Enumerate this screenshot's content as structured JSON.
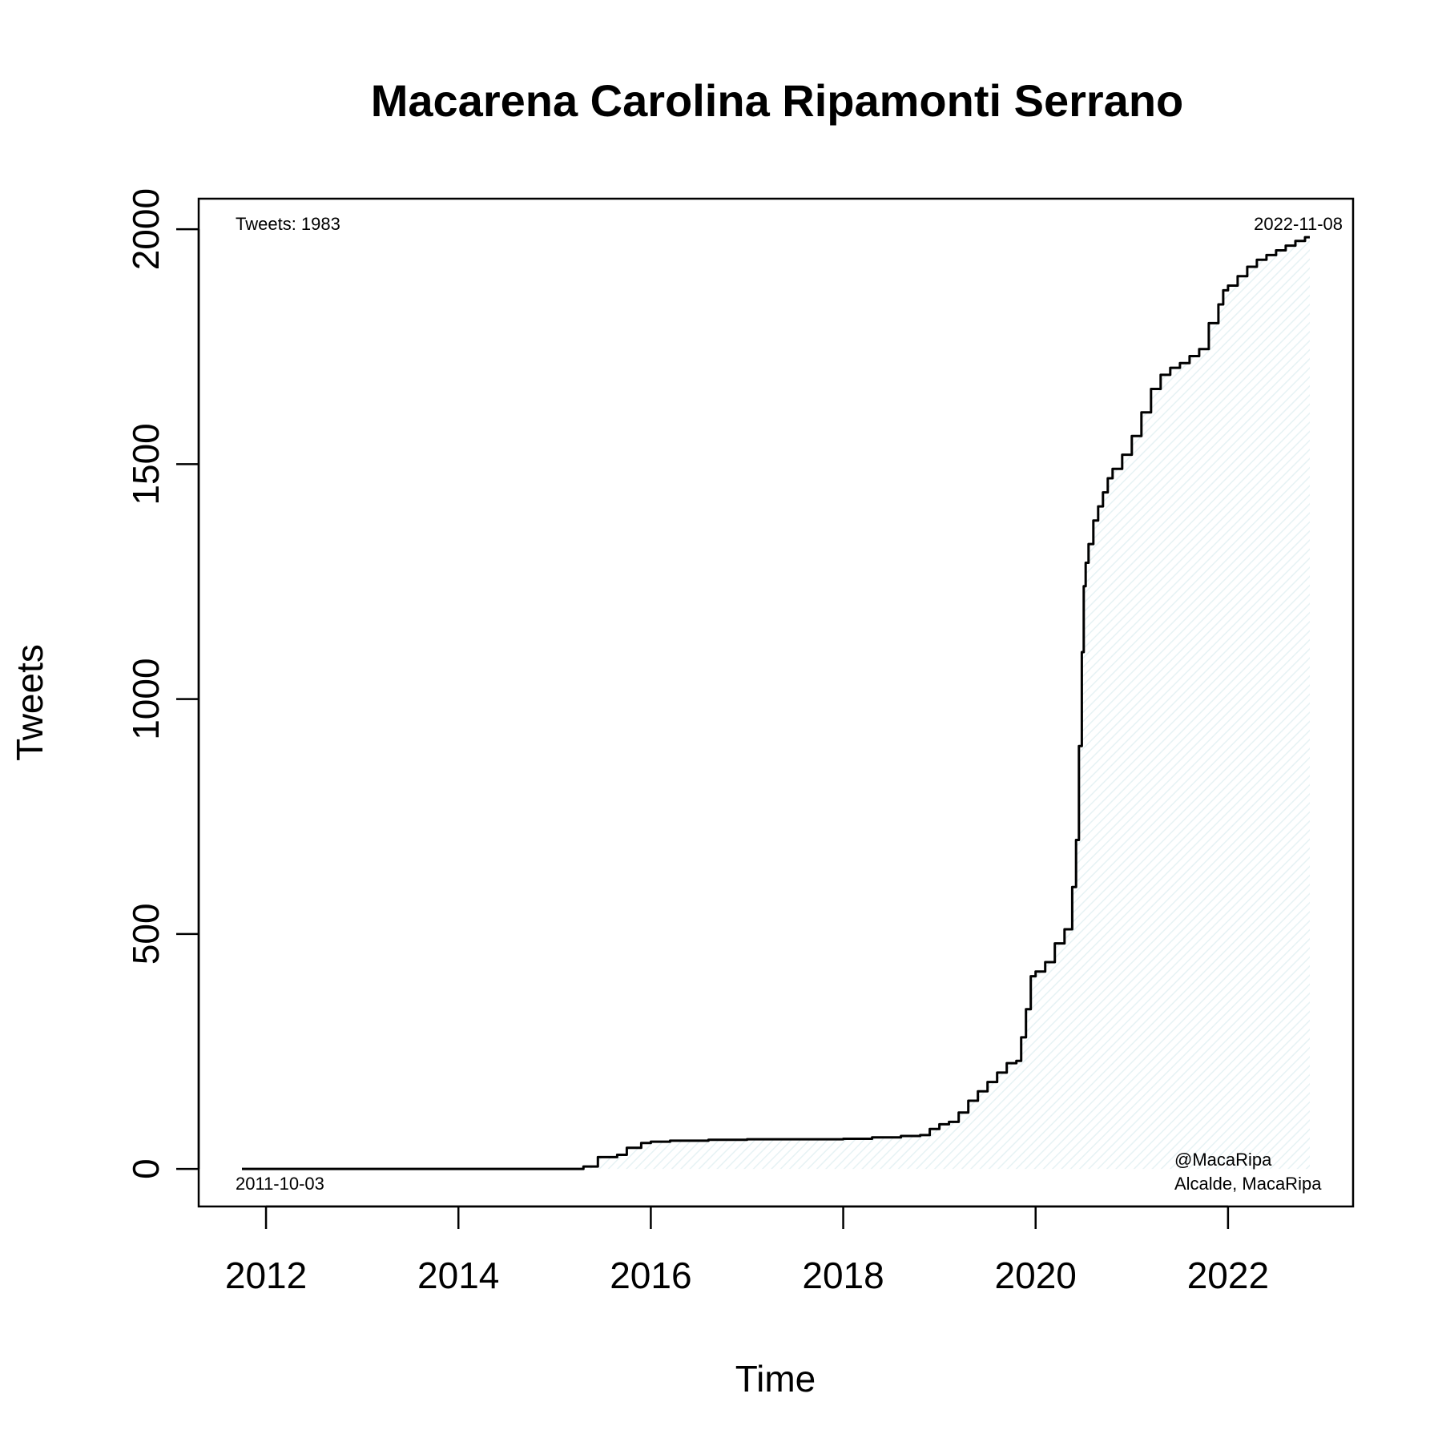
{
  "chart_data": {
    "type": "area",
    "title": "Macarena Carolina Ripamonti Serrano",
    "xlabel": "Time",
    "ylabel": "Tweets",
    "xlim": [
      2011.3,
      2023.3
    ],
    "ylim": [
      -80,
      2065
    ],
    "x_ticks": [
      2012,
      2014,
      2016,
      2018,
      2020,
      2022
    ],
    "y_ticks": [
      0,
      500,
      1000,
      1500,
      2000
    ],
    "grid": false,
    "fill_color": "#e6f2f4",
    "line_color": "#000000",
    "annotations": {
      "total": "Tweets: 1983",
      "start_date": "2011-10-03",
      "end_date": "2022-11-08",
      "handle": "@MacaRipa",
      "description": "Alcalde, MacaRipa"
    },
    "series": [
      {
        "x": [
          2011.75,
          2013.0,
          2014.5,
          2015.1,
          2015.3,
          2015.45,
          2015.65,
          2015.75,
          2015.9,
          2016.0,
          2016.2,
          2016.6,
          2017.0,
          2017.5,
          2018.0,
          2018.3,
          2018.6,
          2018.8,
          2018.9,
          2019.0,
          2019.1,
          2019.2,
          2019.3,
          2019.4,
          2019.5,
          2019.6,
          2019.7,
          2019.8,
          2019.85,
          2019.9,
          2019.95,
          2020.0,
          2020.1,
          2020.2,
          2020.3,
          2020.38,
          2020.42,
          2020.45,
          2020.48,
          2020.5,
          2020.52,
          2020.55,
          2020.6,
          2020.65,
          2020.7,
          2020.75,
          2020.8,
          2020.9,
          2021.0,
          2021.1,
          2021.2,
          2021.3,
          2021.4,
          2021.5,
          2021.6,
          2021.7,
          2021.8,
          2021.9,
          2021.95,
          2022.0,
          2022.1,
          2022.2,
          2022.3,
          2022.4,
          2022.5,
          2022.6,
          2022.7,
          2022.8,
          2022.85
        ],
        "values": [
          0,
          0,
          0,
          0,
          5,
          25,
          30,
          45,
          55,
          58,
          60,
          62,
          63,
          63,
          64,
          67,
          70,
          72,
          85,
          95,
          100,
          120,
          145,
          165,
          185,
          205,
          225,
          230,
          280,
          340,
          410,
          420,
          440,
          480,
          510,
          600,
          700,
          900,
          1100,
          1240,
          1290,
          1330,
          1380,
          1410,
          1440,
          1470,
          1490,
          1520,
          1560,
          1610,
          1660,
          1690,
          1705,
          1715,
          1730,
          1745,
          1800,
          1840,
          1870,
          1880,
          1900,
          1920,
          1935,
          1945,
          1955,
          1965,
          1975,
          1983,
          1983
        ]
      }
    ]
  }
}
